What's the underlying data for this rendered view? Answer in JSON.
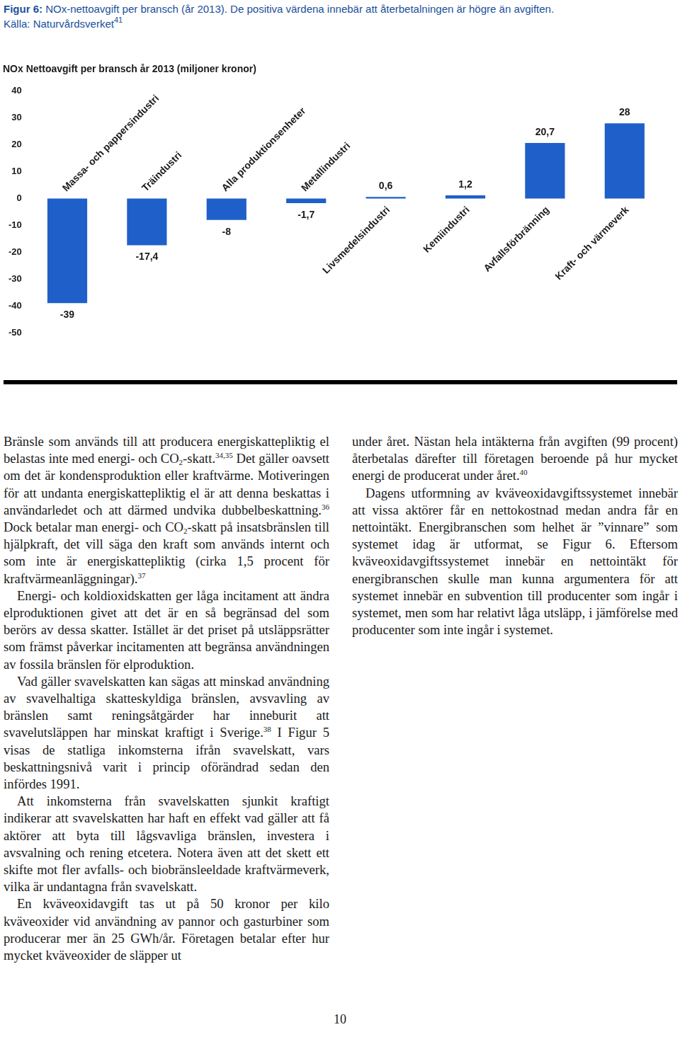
{
  "caption": {
    "label": "Figur 6:",
    "text": " NOx-nettoavgift per bransch (år 2013). De positiva värdena innebär att återbetalningen är högre än avgiften.",
    "source": [
      {
        "text": "Källa: Naturvårdsverket"
      },
      {
        "sup": "41"
      }
    ]
  },
  "chart_data": {
    "type": "bar",
    "title": "NOx Nettoavgift per bransch år 2013 (miljoner kronor)",
    "categories": [
      "Massa- och pappersindustri",
      "Träindustri",
      "Alla produktionsenheter",
      "Metallindustri",
      "Livsmedelsindustri",
      "Kemiindustri",
      "Avfallsförbränning",
      "Kraft- och värmeverk"
    ],
    "values": [
      -39,
      -17.4,
      -8,
      -1.7,
      0.6,
      1.2,
      20.7,
      28
    ],
    "value_labels": [
      "-39",
      "-17,4",
      "-8",
      "-1,7",
      "0,6",
      "1,2",
      "20,7",
      "28"
    ],
    "color": "#1f5fc9",
    "ylim": [
      -50,
      40
    ],
    "yticks": [
      -50,
      -40,
      -30,
      -20,
      -10,
      0,
      10,
      20,
      30,
      40
    ],
    "grid": false,
    "data_labels": true
  },
  "columns": [
    [
      [
        {
          "text": "Bränsle som används till att producera energiskattepliktig el belastas inte med energi- och CO"
        },
        {
          "sub": "2"
        },
        {
          "text": "-skatt."
        },
        {
          "sup": "34,35"
        },
        {
          "text": " Det gäller oavsett om det är kondensproduktion eller kraftvärme. Motiveringen för att undanta energiskattepliktig el är att denna beskattas i användarledet och att därmed undvika dubbelbeskattning."
        },
        {
          "sup": "36"
        },
        {
          "text": " Dock betalar man energi- och CO"
        },
        {
          "sub": "2"
        },
        {
          "text": "-skatt på insatsbränslen till hjälpkraft, det vill säga den kraft som används internt och som inte är energiskattepliktig (cirka 1,5 procent för kraftvärmeanläggningar)."
        },
        {
          "sup": "37"
        }
      ],
      [
        {
          "text": "Energi- och koldioxidskatten ger låga incitament att ändra elproduktionen givet att det är en så begränsad del som berörs av dessa skatter. Istället är det priset på utsläppsrätter som främst påverkar incitamenten att begränsa användningen av fossila bränslen för elproduktion."
        }
      ],
      [
        {
          "text": "Vad gäller svavelskatten kan sägas att minskad användning av svavelhaltiga skatteskyldiga bränslen, avsvavling av bränslen samt reningsåtgärder har inneburit att svavelutsläppen har minskat kraftigt i Sverige."
        },
        {
          "sup": "38"
        },
        {
          "text": " I Figur 5 visas de statliga inkomsterna ifrån svavelskatt, vars beskattningsnivå varit i princip oförändrad sedan den infördes 1991."
        }
      ],
      [
        {
          "text": "Att inkomsterna från svavelskatten sjunkit kraftigt indikerar att svavelskatten har haft en effekt vad gäller att få aktörer att byta till lågsvavliga bränslen, investera i avsvalning och rening etcetera. Notera även att det skett ett skifte mot fler avfalls- och biobränsleeldade kraftvärmeverk, vilka är undantagna från svavelskatt."
        }
      ],
      [
        {
          "text": "En kväveoxidavgift tas ut på 50 kronor per kilo kväveoxider vid användning av pannor och gasturbiner som producerar mer än 25 GWh/år. Företagen betalar efter hur mycket kväveoxider de släpper ut"
        }
      ]
    ],
    [
      [
        {
          "text": "under året. Nästan hela intäkterna från avgiften (99 procent) återbetalas därefter till företagen beroende på hur mycket energi de producerat under året."
        },
        {
          "sup": "40"
        }
      ],
      [
        {
          "text": "Dagens utformning av kväveoxidavgiftssystemet innebär att vissa aktörer får en nettokostnad medan andra får en nettointäkt. Energibranschen som helhet är ”vinnare” som systemet idag är utformat, se Figur 6. Eftersom kväveoxidavgiftssystemet innebär en nettointäkt för energibranschen skulle man kunna argumentera för att systemet innebär en subvention till producenter som ingår i systemet, men som har relativt låga utsläpp, i jämförelse med producenter som inte ingår i systemet."
        }
      ]
    ]
  ],
  "page_number": "10"
}
